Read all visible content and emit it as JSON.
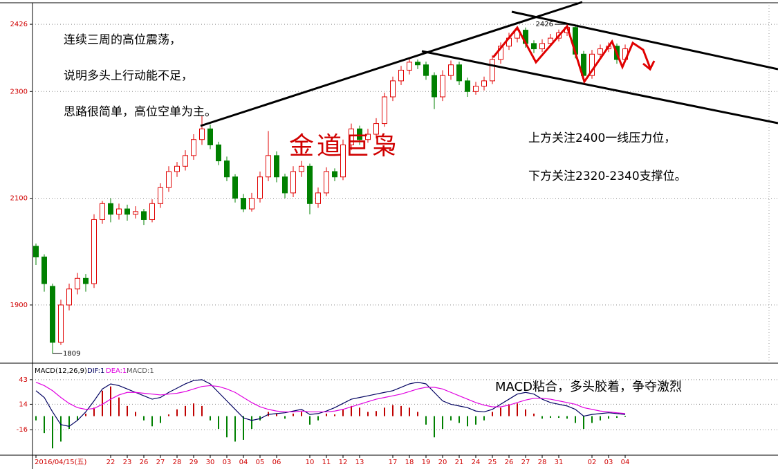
{
  "chart_data": [
    {
      "type": "candlestick",
      "annotations": [
        "连续三周的高位震荡，",
        "说明多头上行动能不足，",
        "思路很简单，高位空单为主。",
        "上方关注2400一线压力位，",
        "下方关注2320-2340支撑位。",
        "金道巨枭"
      ],
      "extremes": {
        "high": 2426,
        "low": 1809
      },
      "categories": [
        "2016/04/15(五)",
        null,
        null,
        null,
        null,
        null,
        null,
        null,
        null,
        "22",
        null,
        "23",
        null,
        "26",
        null,
        "27",
        null,
        "28",
        null,
        "29",
        null,
        "30",
        null,
        "03",
        null,
        "04",
        null,
        "05",
        null,
        "06",
        null,
        null,
        null,
        "10",
        null,
        "11",
        null,
        "12",
        null,
        "13",
        null,
        null,
        null,
        "17",
        null,
        "18",
        null,
        "19",
        null,
        "20",
        null,
        "21",
        null,
        "24",
        null,
        "25",
        null,
        "26",
        null,
        "27",
        null,
        "28",
        null,
        "31",
        null,
        null,
        null,
        "02",
        null,
        "03",
        null,
        "04"
      ],
      "open": [
        2010,
        1990,
        1935,
        1830,
        1900,
        1930,
        1950,
        1940,
        2060,
        2090,
        2070,
        2080,
        2070,
        2075,
        2060,
        2090,
        2120,
        2150,
        2160,
        2180,
        2210,
        2230,
        2200,
        2170,
        2140,
        2100,
        2080,
        2100,
        2140,
        2180,
        2140,
        2110,
        2150,
        2160,
        2090,
        2110,
        2150,
        2140,
        2200,
        2230,
        2210,
        2220,
        2240,
        2290,
        2320,
        2340,
        2355,
        2350,
        2330,
        2290,
        2330,
        2350,
        2320,
        2300,
        2310,
        2320,
        2360,
        2385,
        2400,
        2415,
        2390,
        2380,
        2390,
        2400,
        2410,
        2420,
        2370,
        2330,
        2370,
        2380,
        2385,
        2360
      ],
      "high": [
        2015,
        1995,
        1940,
        1910,
        1940,
        1960,
        1958,
        2070,
        2095,
        2100,
        2090,
        2088,
        2085,
        2080,
        2098,
        2128,
        2160,
        2168,
        2190,
        2220,
        2255,
        2238,
        2206,
        2178,
        2145,
        2108,
        2110,
        2150,
        2226,
        2188,
        2146,
        2160,
        2170,
        2165,
        2120,
        2158,
        2156,
        2210,
        2240,
        2236,
        2230,
        2250,
        2298,
        2328,
        2348,
        2362,
        2360,
        2356,
        2336,
        2340,
        2358,
        2356,
        2326,
        2318,
        2328,
        2368,
        2392,
        2410,
        2422,
        2420,
        2396,
        2398,
        2408,
        2416,
        2426,
        2424,
        2376,
        2378,
        2388,
        2392,
        2390,
        2388
      ],
      "low": [
        1975,
        1925,
        1809,
        1825,
        1890,
        1920,
        1925,
        1932,
        2052,
        2055,
        2060,
        2058,
        2062,
        2050,
        2055,
        2082,
        2112,
        2140,
        2152,
        2172,
        2200,
        2192,
        2162,
        2132,
        2092,
        2074,
        2075,
        2092,
        2132,
        2130,
        2100,
        2102,
        2140,
        2070,
        2082,
        2104,
        2132,
        2134,
        2190,
        2200,
        2204,
        2212,
        2234,
        2282,
        2312,
        2332,
        2342,
        2322,
        2267,
        2282,
        2322,
        2312,
        2290,
        2294,
        2302,
        2314,
        2352,
        2378,
        2392,
        2382,
        2372,
        2374,
        2384,
        2394,
        2404,
        2362,
        2317,
        2324,
        2364,
        2374,
        2352,
        2354
      ],
      "close": [
        1990,
        1940,
        1830,
        1900,
        1930,
        1950,
        1940,
        2060,
        2090,
        2070,
        2080,
        2070,
        2075,
        2060,
        2090,
        2120,
        2150,
        2160,
        2180,
        2210,
        2230,
        2200,
        2170,
        2140,
        2100,
        2080,
        2100,
        2140,
        2180,
        2140,
        2110,
        2150,
        2160,
        2090,
        2110,
        2150,
        2140,
        2200,
        2230,
        2210,
        2220,
        2240,
        2290,
        2320,
        2340,
        2355,
        2350,
        2330,
        2290,
        2330,
        2350,
        2320,
        2300,
        2310,
        2320,
        2360,
        2385,
        2400,
        2415,
        2390,
        2380,
        2390,
        2400,
        2410,
        2420,
        2370,
        2330,
        2370,
        2380,
        2385,
        2360,
        2380
      ],
      "up_color": "#e00000",
      "down_color": "#008000",
      "ylim": [
        1791,
        2465
      ],
      "yticks": [
        1900,
        2100,
        2300,
        2426
      ],
      "grid": true
    },
    {
      "type": "macd",
      "title": "MACD(12,26,9)",
      "annotations": [
        "MACD粘合，多头胶着，争夺激烈"
      ],
      "series": [
        {
          "name": "DIF:1",
          "color": "#000060",
          "values": [
            30,
            22,
            5,
            -10,
            -12,
            -5,
            5,
            18,
            32,
            38,
            36,
            32,
            28,
            24,
            20,
            22,
            28,
            33,
            38,
            42,
            43,
            38,
            28,
            18,
            8,
            -2,
            -5,
            -3,
            2,
            3,
            4,
            6,
            8,
            2,
            3,
            6,
            10,
            15,
            20,
            22,
            24,
            26,
            28,
            30,
            34,
            38,
            40,
            38,
            28,
            18,
            14,
            12,
            10,
            6,
            5,
            8,
            14,
            20,
            26,
            28,
            26,
            20,
            16,
            14,
            12,
            8,
            0,
            2,
            3,
            4,
            3,
            2
          ]
        },
        {
          "name": "DEA:1",
          "color": "#e000e0",
          "values": [
            40,
            36,
            30,
            22,
            15,
            10,
            8,
            9,
            14,
            20,
            25,
            28,
            28,
            27,
            26,
            25,
            26,
            27,
            29,
            32,
            35,
            36,
            35,
            32,
            28,
            22,
            16,
            11,
            8,
            6,
            5,
            5,
            6,
            5,
            5,
            5,
            6,
            8,
            11,
            14,
            17,
            20,
            22,
            24,
            26,
            29,
            32,
            34,
            34,
            32,
            28,
            24,
            20,
            16,
            13,
            11,
            11,
            13,
            16,
            19,
            21,
            21,
            20,
            18,
            16,
            14,
            10,
            8,
            6,
            5,
            4,
            3
          ]
        }
      ],
      "histogram": {
        "name": "MACD:1",
        "up_color": "#c00000",
        "down_color": "#008000",
        "values": [
          -5,
          -20,
          -38,
          -30,
          -15,
          -5,
          3,
          10,
          30,
          35,
          22,
          12,
          5,
          -5,
          -12,
          -8,
          2,
          8,
          12,
          15,
          12,
          -5,
          -15,
          -25,
          -30,
          -28,
          -15,
          -5,
          5,
          3,
          -3,
          3,
          5,
          -10,
          -5,
          3,
          2,
          8,
          12,
          10,
          5,
          6,
          10,
          13,
          12,
          10,
          5,
          -10,
          -25,
          -15,
          -5,
          -8,
          -12,
          -10,
          -5,
          5,
          10,
          14,
          15,
          8,
          3,
          -3,
          -2,
          -2,
          -3,
          -8,
          -15,
          -8,
          -5,
          -3,
          -2,
          -1
        ]
      },
      "ylim": [
        -46,
        60
      ],
      "yticks": [
        -16,
        14,
        43
      ],
      "grid": true
    }
  ]
}
